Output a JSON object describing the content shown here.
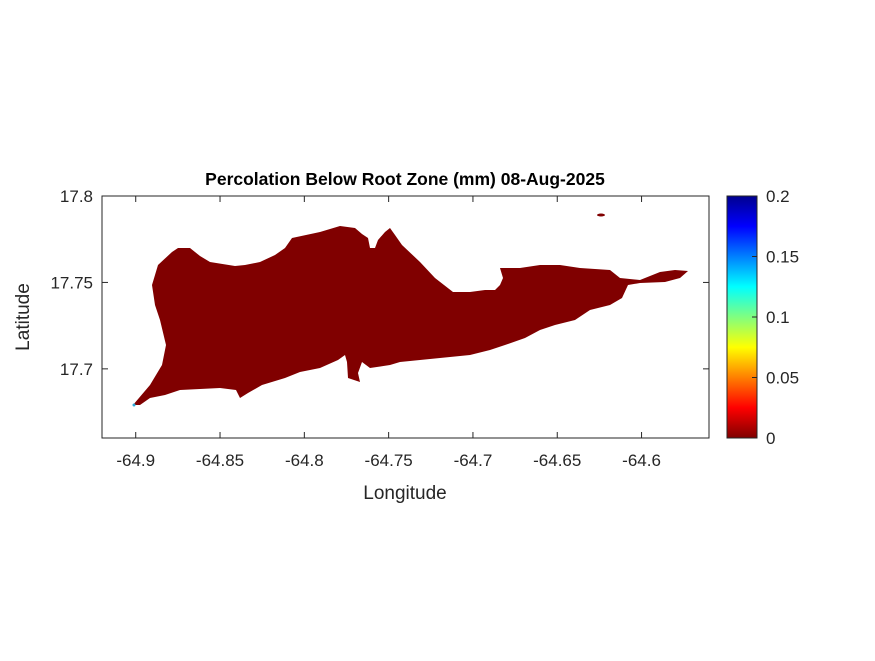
{
  "chart_data": {
    "type": "heatmap",
    "title": "Percolation Below Root Zone (mm) 08-Aug-2025",
    "xlabel": "Longitude",
    "ylabel": "Latitude",
    "xlim": [
      -64.92,
      -64.56
    ],
    "ylim": [
      17.66,
      17.8
    ],
    "xticks": [
      -64.9,
      -64.85,
      -64.8,
      -64.75,
      -64.7,
      -64.65,
      -64.6
    ],
    "xtick_labels": [
      "-64.9",
      "-64.85",
      "-64.8",
      "-64.75",
      "-64.7",
      "-64.65",
      "-64.6"
    ],
    "yticks": [
      17.7,
      17.75,
      17.8
    ],
    "ytick_labels": [
      "17.7",
      "17.75",
      "17.8"
    ],
    "colorbar": {
      "colormap": "jet (reversed)",
      "clim": [
        0,
        0.2
      ],
      "ticks": [
        0,
        0.05,
        0.1,
        0.15,
        0.2
      ],
      "tick_labels": [
        "0",
        "0.05",
        "0.1",
        "0.15",
        "0.2"
      ],
      "placement": "right"
    },
    "field_value_mm": 0,
    "field_color": "#800000",
    "grid": false
  }
}
